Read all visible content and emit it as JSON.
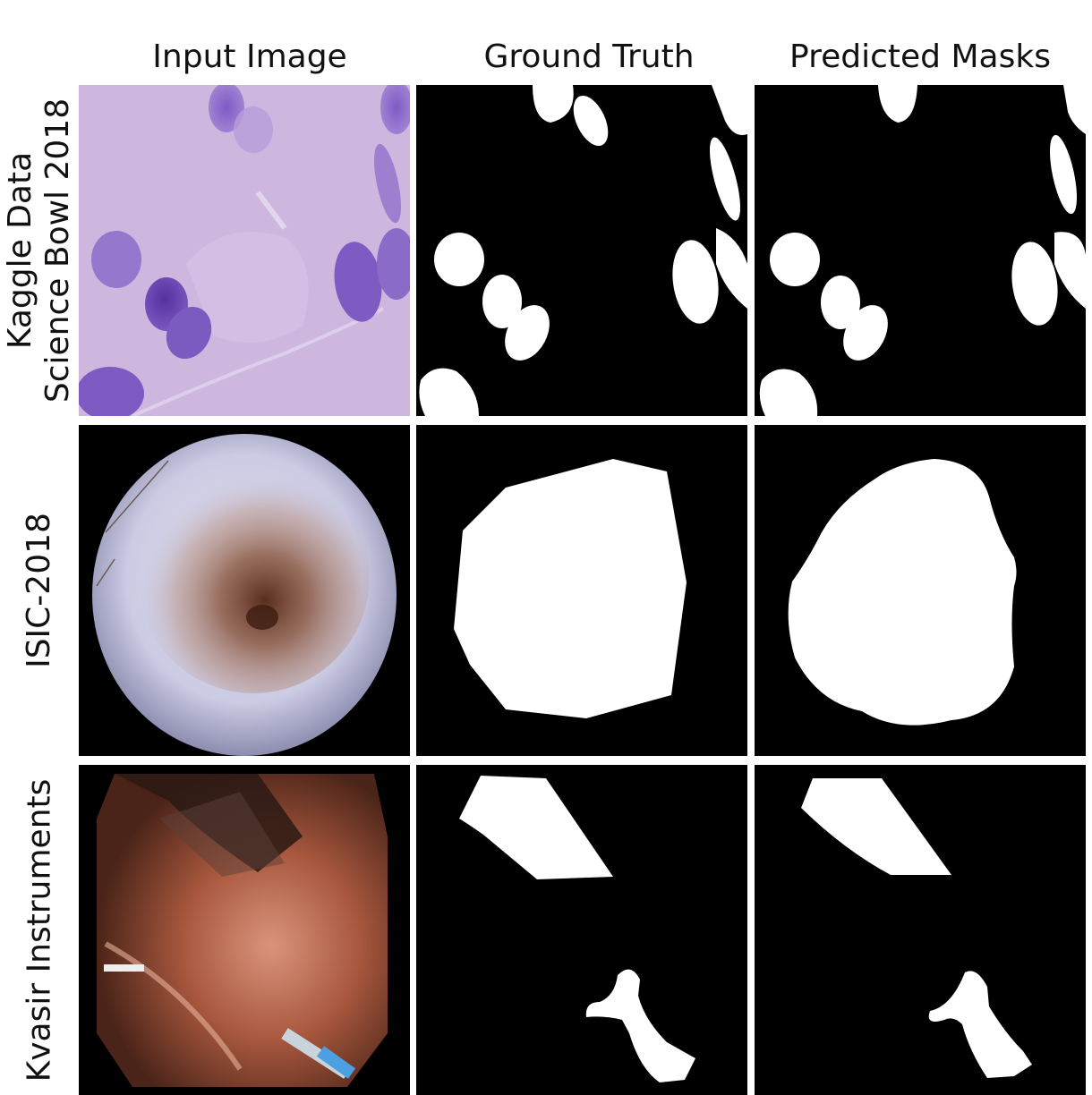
{
  "columns": [
    "Input Image",
    "Ground Truth",
    "Predicted Masks"
  ],
  "rows": [
    {
      "label_lines": [
        "Kaggle Data",
        "Science Bowl 2018"
      ]
    },
    {
      "label_lines": [
        "ISIC-2018"
      ]
    },
    {
      "label_lines": [
        "Kvasir Instruments"
      ]
    }
  ],
  "colors": {
    "background": "#ffffff",
    "mask_background": "#000000",
    "mask_foreground": "#ffffff",
    "histology_stain": "#cdb6df",
    "nucleus": "#6a3fb0",
    "skin": "#cfcfe6",
    "lesion": "#8a5a3c",
    "endoscopy_tissue": "#b9654e"
  }
}
